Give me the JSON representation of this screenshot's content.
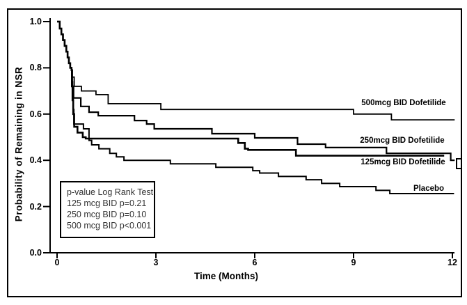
{
  "chart_data": {
    "type": "line",
    "subtype": "kaplan-meier-step",
    "title": "",
    "xlabel": "Time (Months)",
    "ylabel": "Probability of Remaining in NSR",
    "xlim": [
      0,
      12
    ],
    "ylim": [
      0.0,
      1.0
    ],
    "grid": false,
    "x_ticks": [
      "0",
      "3",
      "6",
      "9",
      "12"
    ],
    "x_tick_values": [
      0,
      3,
      6,
      9,
      12
    ],
    "y_ticks": [
      "0.0",
      "0.2",
      "0.4",
      "0.6",
      "0.8",
      "1.0"
    ],
    "y_tick_values": [
      0.0,
      0.2,
      0.4,
      0.6,
      0.8,
      1.0
    ],
    "line_color": "#000000",
    "series": [
      {
        "name": "500mcg BID Dofetilide",
        "stroke_width": 1.8,
        "points": [
          [
            0,
            1.0
          ],
          [
            0.08,
            0.97
          ],
          [
            0.13,
            0.945
          ],
          [
            0.18,
            0.92
          ],
          [
            0.23,
            0.895
          ],
          [
            0.28,
            0.87
          ],
          [
            0.32,
            0.845
          ],
          [
            0.36,
            0.82
          ],
          [
            0.4,
            0.8
          ],
          [
            0.44,
            0.79
          ],
          [
            0.46,
            0.76
          ],
          [
            0.52,
            0.72
          ],
          [
            0.74,
            0.7
          ],
          [
            1.18,
            0.684
          ],
          [
            1.55,
            0.645
          ],
          [
            3.15,
            0.62
          ],
          [
            9.0,
            0.6
          ],
          [
            10.15,
            0.575
          ],
          [
            12.07,
            0.575
          ]
        ]
      },
      {
        "name": "250mcg BID Dofetilide",
        "stroke_width": 2.2,
        "points": [
          [
            0,
            1.0
          ],
          [
            0.08,
            0.97
          ],
          [
            0.13,
            0.945
          ],
          [
            0.18,
            0.92
          ],
          [
            0.23,
            0.895
          ],
          [
            0.28,
            0.87
          ],
          [
            0.32,
            0.845
          ],
          [
            0.36,
            0.82
          ],
          [
            0.4,
            0.8
          ],
          [
            0.44,
            0.79
          ],
          [
            0.46,
            0.72
          ],
          [
            0.5,
            0.67
          ],
          [
            0.72,
            0.633
          ],
          [
            0.97,
            0.608
          ],
          [
            1.25,
            0.593
          ],
          [
            2.35,
            0.572
          ],
          [
            2.72,
            0.557
          ],
          [
            2.95,
            0.536
          ],
          [
            4.7,
            0.515
          ],
          [
            6.0,
            0.497
          ],
          [
            7.3,
            0.47
          ],
          [
            8.15,
            0.455
          ],
          [
            10.0,
            0.43
          ],
          [
            11.95,
            0.4
          ],
          [
            12.07,
            0.4
          ]
        ]
      },
      {
        "name": "125mcg BID Dofetilide",
        "stroke_width": 2.6,
        "points": [
          [
            0,
            1.0
          ],
          [
            0.08,
            0.97
          ],
          [
            0.13,
            0.945
          ],
          [
            0.18,
            0.92
          ],
          [
            0.23,
            0.895
          ],
          [
            0.28,
            0.87
          ],
          [
            0.32,
            0.845
          ],
          [
            0.36,
            0.82
          ],
          [
            0.4,
            0.8
          ],
          [
            0.44,
            0.79
          ],
          [
            0.45,
            0.72
          ],
          [
            0.47,
            0.66
          ],
          [
            0.49,
            0.6
          ],
          [
            0.52,
            0.545
          ],
          [
            0.62,
            0.52
          ],
          [
            0.78,
            0.5
          ],
          [
            0.87,
            0.494
          ],
          [
            5.5,
            0.475
          ],
          [
            5.7,
            0.45
          ],
          [
            5.8,
            0.445
          ],
          [
            7.25,
            0.42
          ],
          [
            11.75,
            0.42
          ]
        ]
      },
      {
        "name": "Placebo",
        "stroke_width": 2.0,
        "points": [
          [
            0,
            1.0
          ],
          [
            0.08,
            0.97
          ],
          [
            0.13,
            0.945
          ],
          [
            0.18,
            0.92
          ],
          [
            0.23,
            0.895
          ],
          [
            0.28,
            0.87
          ],
          [
            0.32,
            0.845
          ],
          [
            0.36,
            0.82
          ],
          [
            0.4,
            0.8
          ],
          [
            0.44,
            0.79
          ],
          [
            0.45,
            0.74
          ],
          [
            0.47,
            0.68
          ],
          [
            0.49,
            0.62
          ],
          [
            0.51,
            0.557
          ],
          [
            0.8,
            0.536
          ],
          [
            0.97,
            0.486
          ],
          [
            1.05,
            0.467
          ],
          [
            1.27,
            0.45
          ],
          [
            1.6,
            0.43
          ],
          [
            1.8,
            0.415
          ],
          [
            2.03,
            0.4
          ],
          [
            3.44,
            0.385
          ],
          [
            4.82,
            0.37
          ],
          [
            5.94,
            0.355
          ],
          [
            6.15,
            0.345
          ],
          [
            6.72,
            0.33
          ],
          [
            7.56,
            0.316
          ],
          [
            8.03,
            0.3
          ],
          [
            8.58,
            0.286
          ],
          [
            9.68,
            0.27
          ],
          [
            10.1,
            0.256
          ],
          [
            12.05,
            0.256
          ]
        ]
      }
    ],
    "censor_marks": [
      {
        "series": "125mcg BID Dofetilide",
        "t": 12.15,
        "p": 0.4,
        "symbol": "bracket"
      }
    ],
    "annotation_box": {
      "title": "p-value Log Rank Test",
      "lines": [
        "125 mcg BID p=0.21",
        "250 mcg BID p=0.10",
        "500 mcg BID p<0.001"
      ]
    },
    "legend_position": "labels-on-curves"
  }
}
